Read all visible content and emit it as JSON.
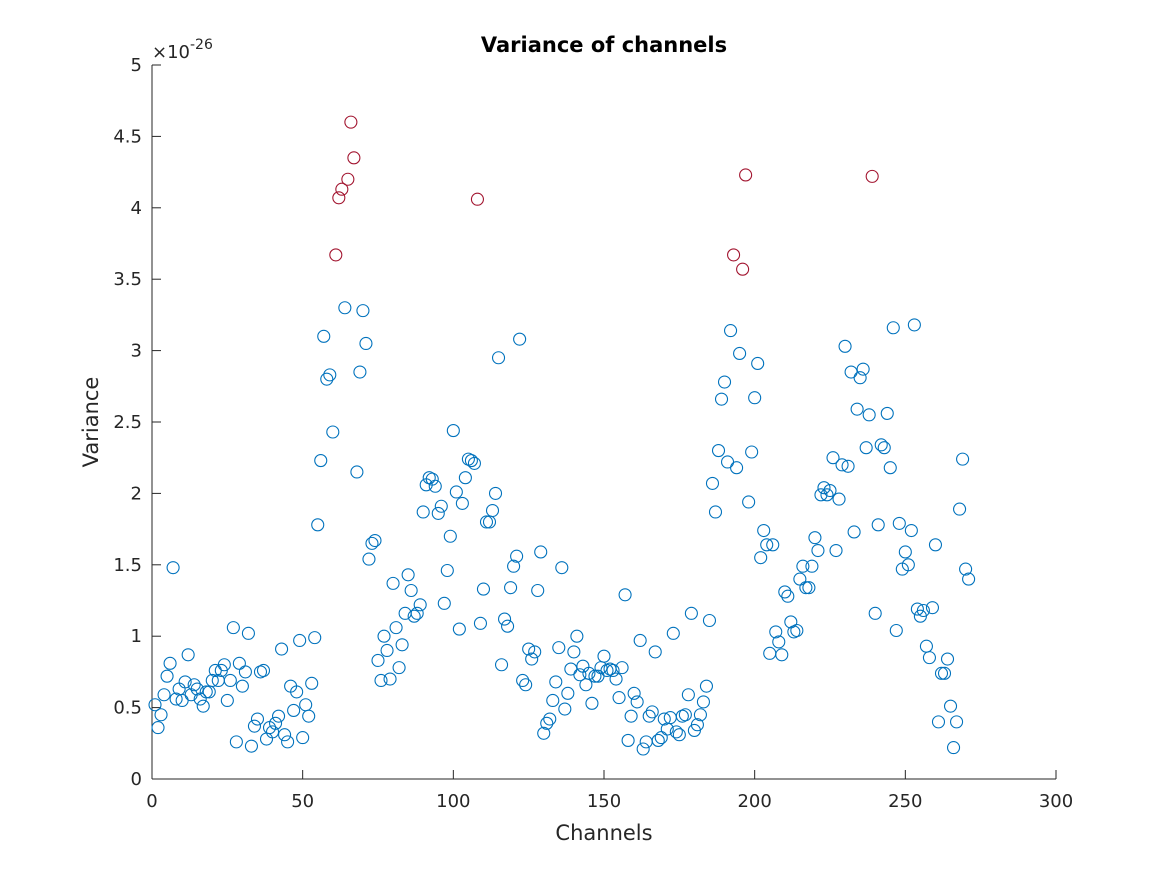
{
  "chart_data": {
    "type": "scatter",
    "title": "Variance of channels",
    "xlabel": "Channels",
    "ylabel": "Variance",
    "y_exponent_prefix": "×10",
    "y_exponent_power": "-26",
    "xlim": [
      0,
      300
    ],
    "ylim": [
      0,
      5
    ],
    "x_ticks": [
      0,
      50,
      100,
      150,
      200,
      250,
      300
    ],
    "x_tick_labels": [
      "0",
      "50",
      "100",
      "150",
      "200",
      "250",
      "300"
    ],
    "y_ticks": [
      0,
      0.5,
      1,
      1.5,
      2,
      2.5,
      3,
      3.5,
      4,
      4.5,
      5
    ],
    "y_tick_labels": [
      "0",
      "0.5",
      "1",
      "1.5",
      "2",
      "2.5",
      "3",
      "3.5",
      "4",
      "4.5",
      "5"
    ],
    "grid": false,
    "colors": {
      "normal": "#0072BD",
      "outlier": "#A2142F",
      "axis": "#262626"
    },
    "series": [
      {
        "color": "#0072BD",
        "marker": "circle-open",
        "points": [
          [
            1,
            0.52
          ],
          [
            2,
            0.36
          ],
          [
            3,
            0.45
          ],
          [
            4,
            0.59
          ],
          [
            5,
            0.72
          ],
          [
            6,
            0.81
          ],
          [
            7,
            1.48
          ],
          [
            8,
            0.56
          ],
          [
            9,
            0.63
          ],
          [
            10,
            0.55
          ],
          [
            11,
            0.68
          ],
          [
            12,
            0.87
          ],
          [
            13,
            0.59
          ],
          [
            14,
            0.66
          ],
          [
            15,
            0.63
          ],
          [
            16,
            0.56
          ],
          [
            17,
            0.51
          ],
          [
            18,
            0.61
          ],
          [
            19,
            0.61
          ],
          [
            20,
            0.69
          ],
          [
            21,
            0.76
          ],
          [
            22,
            0.69
          ],
          [
            23,
            0.76
          ],
          [
            24,
            0.8
          ],
          [
            25,
            0.55
          ],
          [
            26,
            0.69
          ],
          [
            27,
            1.06
          ],
          [
            28,
            0.26
          ],
          [
            29,
            0.81
          ],
          [
            30,
            0.65
          ],
          [
            31,
            0.75
          ],
          [
            32,
            1.02
          ],
          [
            33,
            0.23
          ],
          [
            34,
            0.37
          ],
          [
            35,
            0.42
          ],
          [
            36,
            0.75
          ],
          [
            37,
            0.76
          ],
          [
            38,
            0.28
          ],
          [
            39,
            0.36
          ],
          [
            40,
            0.33
          ],
          [
            41,
            0.39
          ],
          [
            42,
            0.44
          ],
          [
            43,
            0.91
          ],
          [
            44,
            0.31
          ],
          [
            45,
            0.26
          ],
          [
            46,
            0.65
          ],
          [
            47,
            0.48
          ],
          [
            48,
            0.61
          ],
          [
            49,
            0.97
          ],
          [
            50,
            0.29
          ],
          [
            51,
            0.52
          ],
          [
            52,
            0.44
          ],
          [
            53,
            0.67
          ],
          [
            54,
            0.99
          ],
          [
            55,
            1.78
          ],
          [
            56,
            2.23
          ],
          [
            57,
            3.1
          ],
          [
            58,
            2.8
          ],
          [
            59,
            2.83
          ],
          [
            60,
            2.43
          ],
          [
            64,
            3.3
          ],
          [
            68,
            2.15
          ],
          [
            69,
            2.85
          ],
          [
            70,
            3.28
          ],
          [
            71,
            3.05
          ],
          [
            72,
            1.54
          ],
          [
            73,
            1.65
          ],
          [
            74,
            1.67
          ],
          [
            75,
            0.83
          ],
          [
            76,
            0.69
          ],
          [
            77,
            1.0
          ],
          [
            78,
            0.9
          ],
          [
            79,
            0.7
          ],
          [
            80,
            1.37
          ],
          [
            81,
            1.06
          ],
          [
            82,
            0.78
          ],
          [
            83,
            0.94
          ],
          [
            84,
            1.16
          ],
          [
            85,
            1.43
          ],
          [
            86,
            1.32
          ],
          [
            87,
            1.14
          ],
          [
            88,
            1.16
          ],
          [
            89,
            1.22
          ],
          [
            90,
            1.87
          ],
          [
            91,
            2.06
          ],
          [
            92,
            2.11
          ],
          [
            93,
            2.1
          ],
          [
            94,
            2.05
          ],
          [
            95,
            1.86
          ],
          [
            96,
            1.91
          ],
          [
            97,
            1.23
          ],
          [
            98,
            1.46
          ],
          [
            99,
            1.7
          ],
          [
            100,
            2.44
          ],
          [
            101,
            2.01
          ],
          [
            102,
            1.05
          ],
          [
            103,
            1.93
          ],
          [
            104,
            2.11
          ],
          [
            105,
            2.24
          ],
          [
            106,
            2.23
          ],
          [
            107,
            2.21
          ],
          [
            109,
            1.09
          ],
          [
            110,
            1.33
          ],
          [
            111,
            1.8
          ],
          [
            112,
            1.8
          ],
          [
            113,
            1.88
          ],
          [
            114,
            2.0
          ],
          [
            115,
            2.95
          ],
          [
            116,
            0.8
          ],
          [
            117,
            1.12
          ],
          [
            118,
            1.07
          ],
          [
            119,
            1.34
          ],
          [
            120,
            1.49
          ],
          [
            121,
            1.56
          ],
          [
            122,
            3.08
          ],
          [
            123,
            0.69
          ],
          [
            124,
            0.66
          ],
          [
            125,
            0.91
          ],
          [
            126,
            0.84
          ],
          [
            127,
            0.89
          ],
          [
            128,
            1.32
          ],
          [
            129,
            1.59
          ],
          [
            130,
            0.32
          ],
          [
            131,
            0.39
          ],
          [
            132,
            0.42
          ],
          [
            133,
            0.55
          ],
          [
            134,
            0.68
          ],
          [
            135,
            0.92
          ],
          [
            136,
            1.48
          ],
          [
            137,
            0.49
          ],
          [
            138,
            0.6
          ],
          [
            139,
            0.77
          ],
          [
            140,
            0.89
          ],
          [
            141,
            1.0
          ],
          [
            142,
            0.73
          ],
          [
            143,
            0.79
          ],
          [
            144,
            0.66
          ],
          [
            145,
            0.74
          ],
          [
            146,
            0.53
          ],
          [
            147,
            0.72
          ],
          [
            148,
            0.72
          ],
          [
            149,
            0.78
          ],
          [
            150,
            0.86
          ],
          [
            151,
            0.76
          ],
          [
            152,
            0.77
          ],
          [
            153,
            0.76
          ],
          [
            154,
            0.7
          ],
          [
            155,
            0.57
          ],
          [
            156,
            0.78
          ],
          [
            157,
            1.29
          ],
          [
            158,
            0.27
          ],
          [
            159,
            0.44
          ],
          [
            160,
            0.6
          ],
          [
            161,
            0.54
          ],
          [
            162,
            0.97
          ],
          [
            163,
            0.21
          ],
          [
            164,
            0.26
          ],
          [
            165,
            0.44
          ],
          [
            166,
            0.47
          ],
          [
            167,
            0.89
          ],
          [
            168,
            0.27
          ],
          [
            169,
            0.29
          ],
          [
            170,
            0.42
          ],
          [
            171,
            0.35
          ],
          [
            172,
            0.43
          ],
          [
            173,
            1.02
          ],
          [
            174,
            0.33
          ],
          [
            175,
            0.31
          ],
          [
            176,
            0.44
          ],
          [
            177,
            0.45
          ],
          [
            178,
            0.59
          ],
          [
            179,
            1.16
          ],
          [
            180,
            0.34
          ],
          [
            181,
            0.38
          ],
          [
            182,
            0.45
          ],
          [
            183,
            0.54
          ],
          [
            184,
            0.65
          ],
          [
            185,
            1.11
          ],
          [
            186,
            2.07
          ],
          [
            187,
            1.87
          ],
          [
            188,
            2.3
          ],
          [
            189,
            2.66
          ],
          [
            190,
            2.78
          ],
          [
            191,
            2.22
          ],
          [
            192,
            3.14
          ],
          [
            194,
            2.18
          ],
          [
            195,
            2.98
          ],
          [
            198,
            1.94
          ],
          [
            199,
            2.29
          ],
          [
            200,
            2.67
          ],
          [
            201,
            2.91
          ],
          [
            202,
            1.55
          ],
          [
            203,
            1.74
          ],
          [
            204,
            1.64
          ],
          [
            205,
            0.88
          ],
          [
            206,
            1.64
          ],
          [
            207,
            1.03
          ],
          [
            208,
            0.96
          ],
          [
            209,
            0.87
          ],
          [
            210,
            1.31
          ],
          [
            211,
            1.28
          ],
          [
            212,
            1.1
          ],
          [
            213,
            1.03
          ],
          [
            214,
            1.04
          ],
          [
            215,
            1.4
          ],
          [
            216,
            1.49
          ],
          [
            217,
            1.34
          ],
          [
            218,
            1.34
          ],
          [
            219,
            1.49
          ],
          [
            220,
            1.69
          ],
          [
            221,
            1.6
          ],
          [
            222,
            1.99
          ],
          [
            223,
            2.04
          ],
          [
            224,
            1.99
          ],
          [
            225,
            2.02
          ],
          [
            226,
            2.25
          ],
          [
            227,
            1.6
          ],
          [
            228,
            1.96
          ],
          [
            229,
            2.2
          ],
          [
            230,
            3.03
          ],
          [
            231,
            2.19
          ],
          [
            232,
            2.85
          ],
          [
            233,
            1.73
          ],
          [
            234,
            2.59
          ],
          [
            235,
            2.81
          ],
          [
            236,
            2.87
          ],
          [
            237,
            2.32
          ],
          [
            238,
            2.55
          ],
          [
            240,
            1.16
          ],
          [
            241,
            1.78
          ],
          [
            242,
            2.34
          ],
          [
            243,
            2.32
          ],
          [
            244,
            2.56
          ],
          [
            245,
            2.18
          ],
          [
            246,
            3.16
          ],
          [
            247,
            1.04
          ],
          [
            248,
            1.79
          ],
          [
            249,
            1.47
          ],
          [
            250,
            1.59
          ],
          [
            251,
            1.5
          ],
          [
            252,
            1.74
          ],
          [
            253,
            3.18
          ],
          [
            254,
            1.19
          ],
          [
            255,
            1.14
          ],
          [
            256,
            1.18
          ],
          [
            257,
            0.93
          ],
          [
            258,
            0.85
          ],
          [
            259,
            1.2
          ],
          [
            260,
            1.64
          ],
          [
            261,
            0.4
          ],
          [
            262,
            0.74
          ],
          [
            263,
            0.74
          ],
          [
            264,
            0.84
          ],
          [
            265,
            0.51
          ],
          [
            266,
            0.22
          ],
          [
            267,
            0.4
          ],
          [
            268,
            1.89
          ],
          [
            269,
            2.24
          ],
          [
            270,
            1.47
          ],
          [
            271,
            1.4
          ]
        ]
      },
      {
        "color": "#A2142F",
        "marker": "circle-open",
        "points": [
          [
            61,
            3.67
          ],
          [
            62,
            4.07
          ],
          [
            63,
            4.13
          ],
          [
            65,
            4.2
          ],
          [
            66,
            4.6
          ],
          [
            67,
            4.35
          ],
          [
            108,
            4.06
          ],
          [
            193,
            3.67
          ],
          [
            196,
            3.57
          ],
          [
            197,
            4.23
          ],
          [
            239,
            4.22
          ]
        ]
      }
    ]
  }
}
